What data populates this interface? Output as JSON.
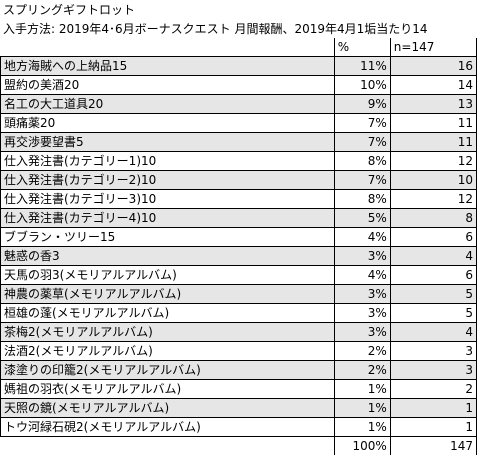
{
  "header": {
    "title": "スプリングギフトロット",
    "acquisition_line": "入手方法: 2019年4･6月ボーナスクエスト 月間報酬、2019年4月1",
    "trailing_line": "垢当たり14"
  },
  "columns": {
    "percent_header": "%",
    "count_header": "n=147"
  },
  "rows": [
    {
      "name": "地方海賊への上納品15",
      "percent": "11%",
      "count": "16"
    },
    {
      "name": "盟約の美酒20",
      "percent": "10%",
      "count": "14"
    },
    {
      "name": "名工の大工道具20",
      "percent": "9%",
      "count": "13"
    },
    {
      "name": "頭痛薬20",
      "percent": "7%",
      "count": "11"
    },
    {
      "name": "再交渉要望書5",
      "percent": "7%",
      "count": "11"
    },
    {
      "name": "仕入発注書(カテゴリー1)10",
      "percent": "8%",
      "count": "12"
    },
    {
      "name": "仕入発注書(カテゴリー2)10",
      "percent": "7%",
      "count": "10"
    },
    {
      "name": "仕入発注書(カテゴリー3)10",
      "percent": "8%",
      "count": "12"
    },
    {
      "name": "仕入発注書(カテゴリー4)10",
      "percent": "5%",
      "count": "8"
    },
    {
      "name": "ブブラン・ツリー15",
      "percent": "4%",
      "count": "6"
    },
    {
      "name": "魅惑の香3",
      "percent": "3%",
      "count": "4"
    },
    {
      "name": "天馬の羽3(メモリアルアルバム)",
      "percent": "4%",
      "count": "6"
    },
    {
      "name": "神農の薬草(メモリアルアルバム)",
      "percent": "3%",
      "count": "5"
    },
    {
      "name": "桓雄の蓬(メモリアルアルバム)",
      "percent": "3%",
      "count": "5"
    },
    {
      "name": "茶梅2(メモリアルアルバム)",
      "percent": "3%",
      "count": "4"
    },
    {
      "name": "法酒2(メモリアルアルバム)",
      "percent": "2%",
      "count": "3"
    },
    {
      "name": "漆塗りの印籠2(メモリアルアルバム)",
      "percent": "2%",
      "count": "3"
    },
    {
      "name": "媽祖の羽衣(メモリアルアルバム)",
      "percent": "1%",
      "count": "2"
    },
    {
      "name": "天照の鏡(メモリアルアルバム)",
      "percent": "1%",
      "count": "1"
    },
    {
      "name": "トウ河緑石硯2(メモリアルアルバム)",
      "percent": "1%",
      "count": "1"
    }
  ],
  "totals": {
    "percent": "100%",
    "count": "147"
  }
}
